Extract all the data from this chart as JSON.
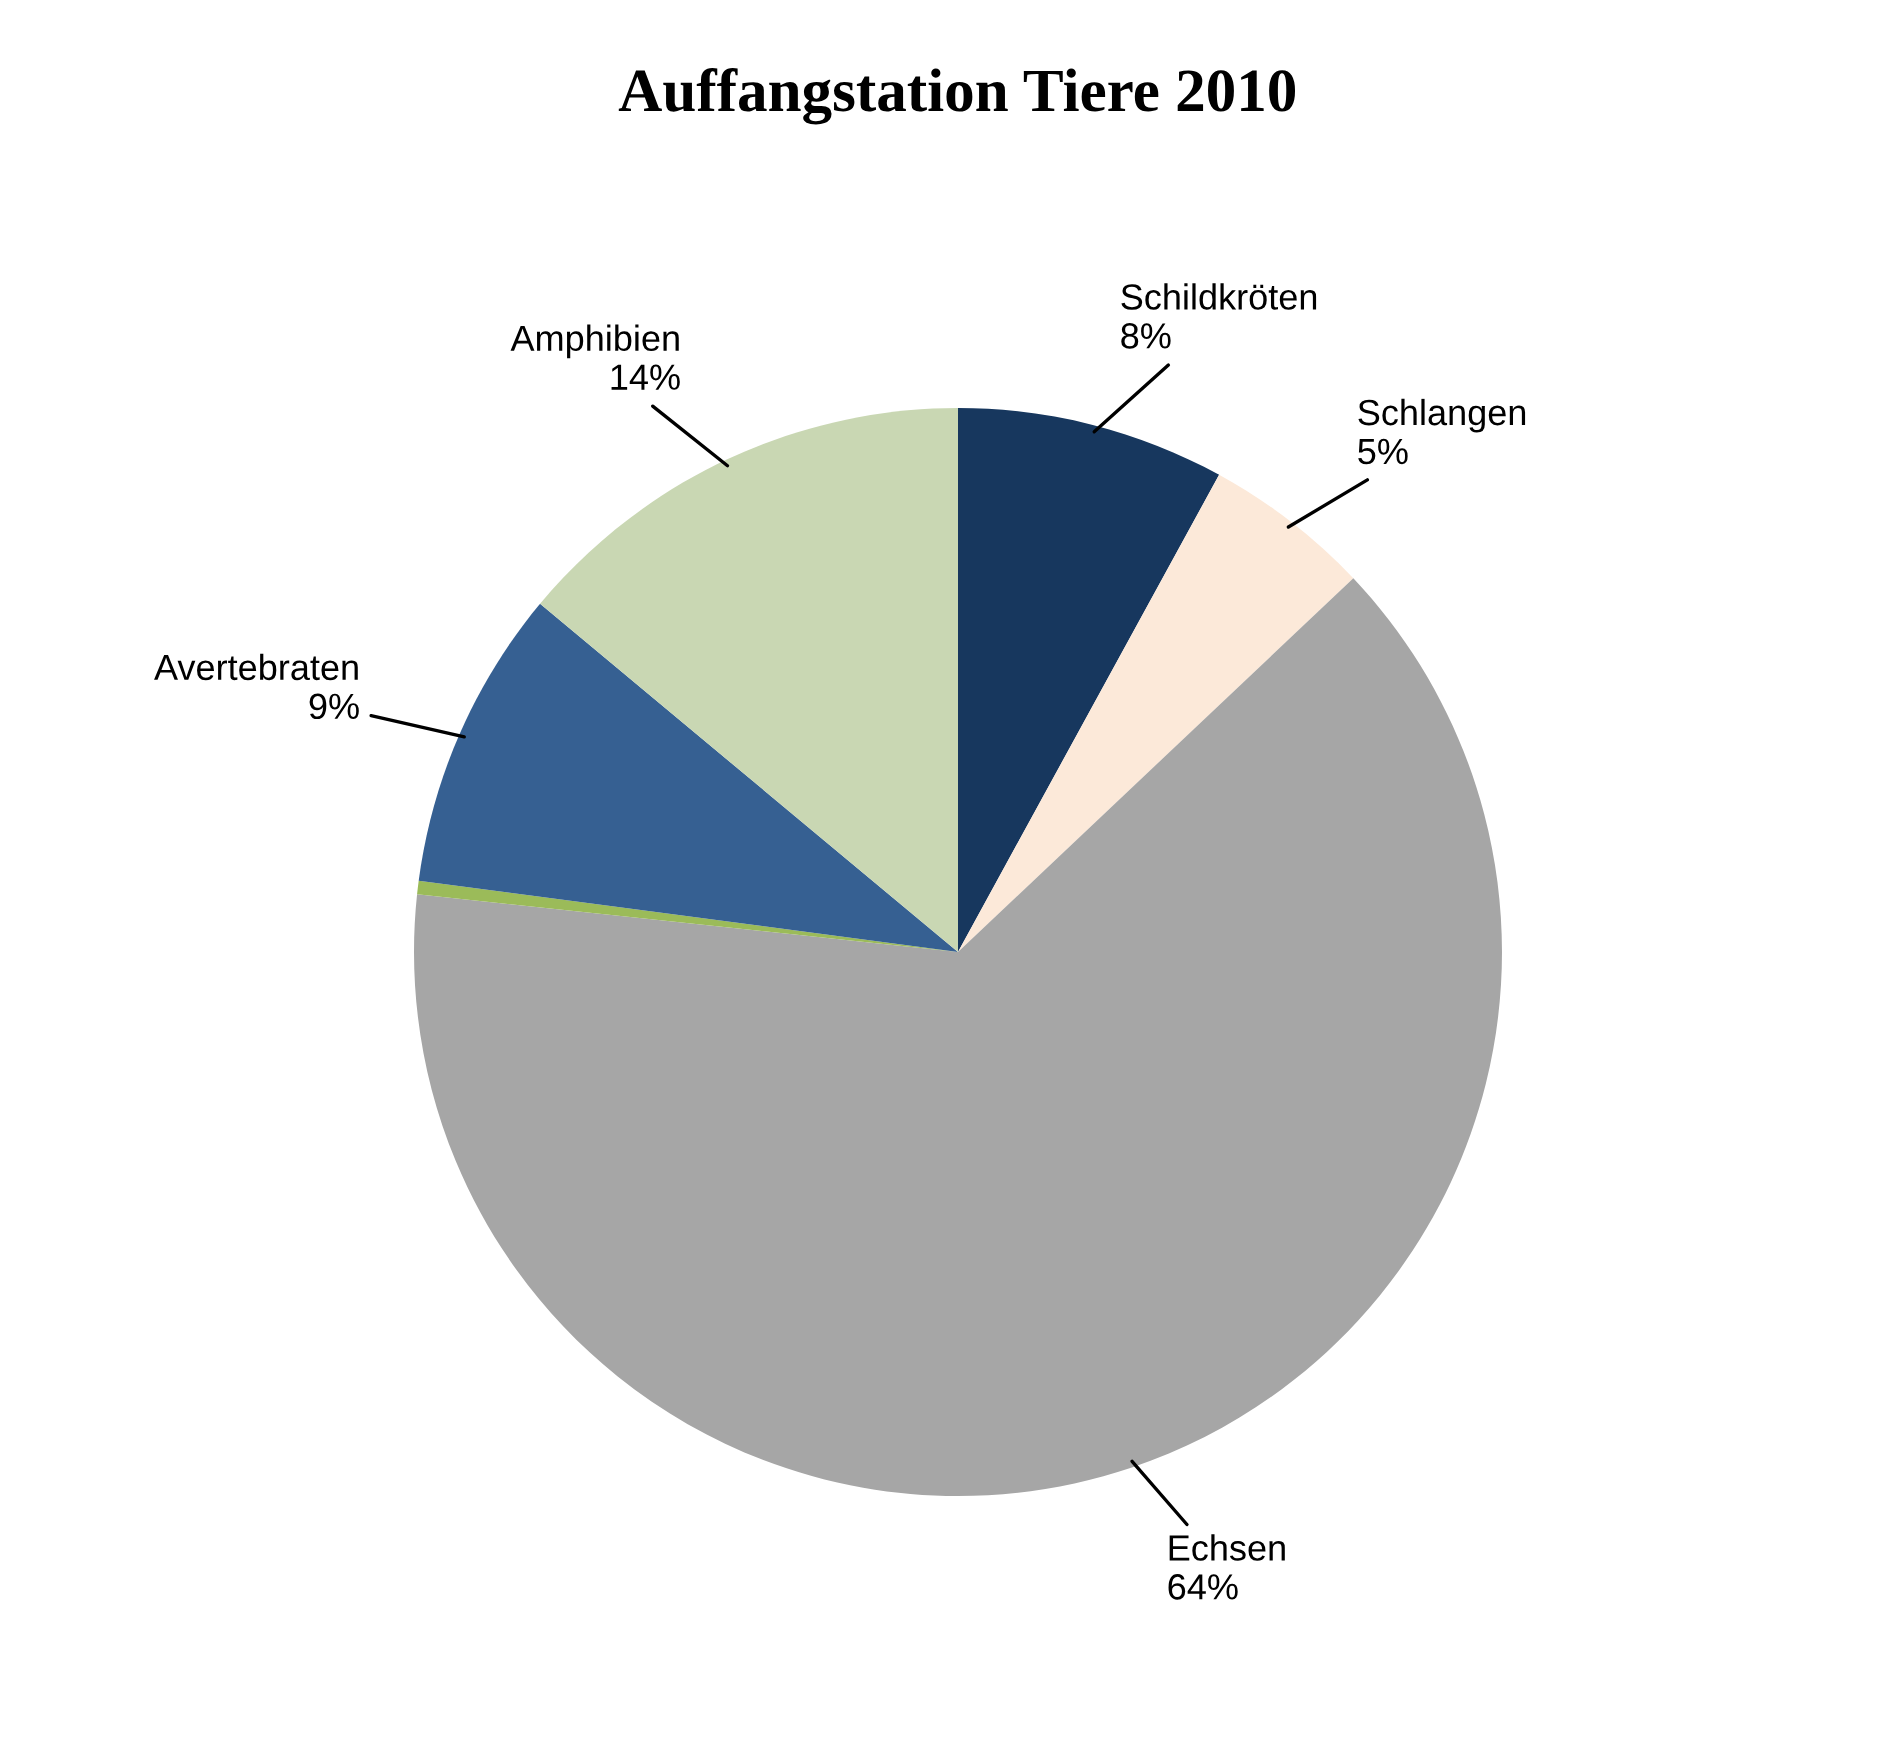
{
  "chart_data": {
    "type": "pie",
    "title": "Auffangstation Tiere 2010",
    "categories": [
      "Schildkröten",
      "Schlangen",
      "Echsen",
      null,
      "Avertebraten",
      "Amphibien"
    ],
    "values": [
      8,
      5,
      64,
      0.4,
      9,
      14
    ],
    "value_labels": [
      "8%",
      "5%",
      "64%",
      null,
      "9%",
      "14%"
    ],
    "colors": [
      "#17375e",
      "#fce9d9",
      "#a6a6a6",
      "#9bbb59",
      "#366092",
      "#c9d7b3"
    ],
    "legend": false
  }
}
